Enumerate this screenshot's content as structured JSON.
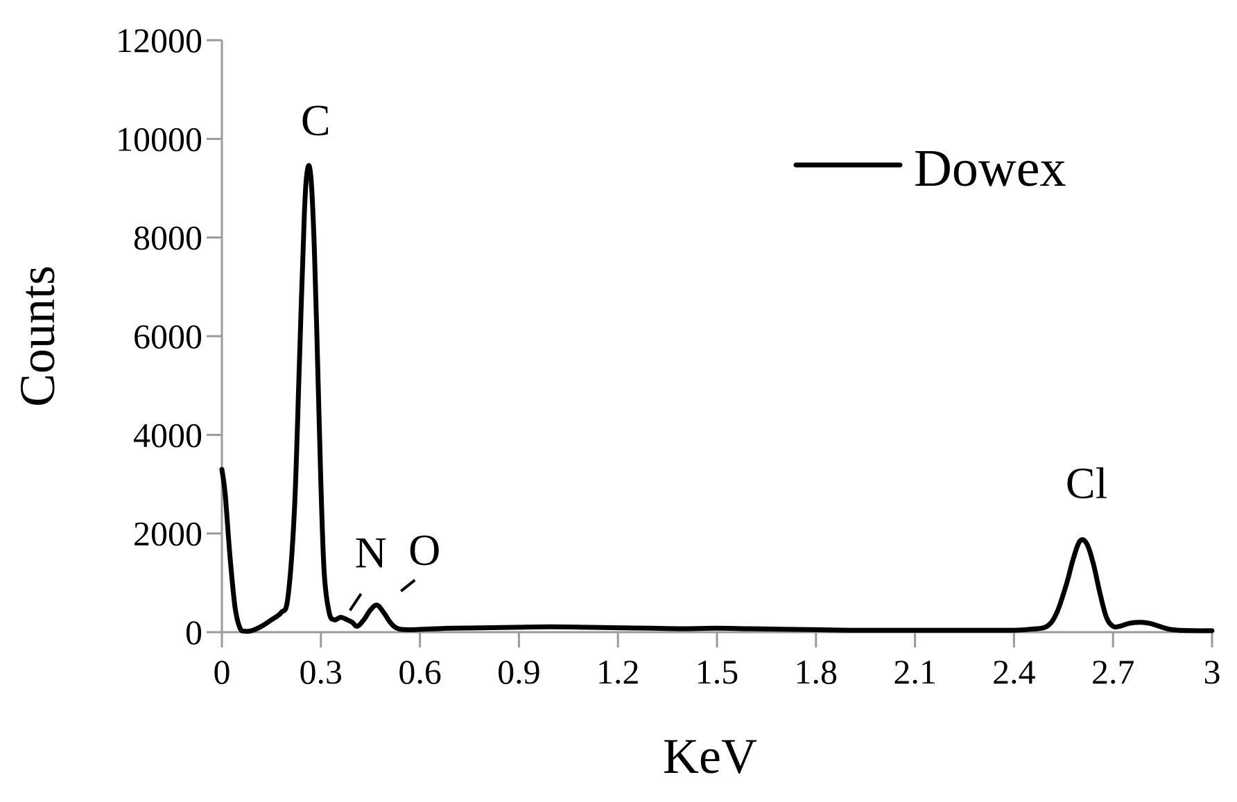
{
  "chart_data": {
    "type": "line",
    "title": "",
    "xlabel": "KeV",
    "ylabel": "Counts",
    "xlim": [
      0,
      3
    ],
    "ylim": [
      0,
      12000
    ],
    "grid": false,
    "legend": {
      "placement": "top-right",
      "entries": [
        "Dowex"
      ]
    },
    "x_ticks": [
      "0",
      "0.3",
      "0.6",
      "0.9",
      "1.2",
      "1.5",
      "1.8",
      "2.1",
      "2.4",
      "2.7",
      "3"
    ],
    "y_ticks": [
      "0",
      "2000",
      "4000",
      "6000",
      "8000",
      "10000",
      "12000"
    ],
    "series": [
      {
        "name": "Dowex",
        "color": "#000000",
        "x": [
          0.0,
          0.01,
          0.025,
          0.04,
          0.055,
          0.07,
          0.09,
          0.12,
          0.15,
          0.18,
          0.2,
          0.22,
          0.235,
          0.25,
          0.26,
          0.27,
          0.28,
          0.29,
          0.3,
          0.31,
          0.325,
          0.34,
          0.36,
          0.38,
          0.395,
          0.41,
          0.43,
          0.45,
          0.47,
          0.49,
          0.51,
          0.525,
          0.54,
          0.56,
          0.58,
          0.61,
          0.65,
          0.7,
          0.8,
          0.9,
          1.0,
          1.1,
          1.2,
          1.3,
          1.4,
          1.5,
          1.6,
          1.7,
          1.8,
          1.9,
          2.0,
          2.1,
          2.2,
          2.3,
          2.4,
          2.45,
          2.5,
          2.53,
          2.56,
          2.58,
          2.6,
          2.62,
          2.64,
          2.66,
          2.68,
          2.7,
          2.72,
          2.75,
          2.78,
          2.81,
          2.84,
          2.87,
          2.9,
          2.95,
          3.0
        ],
        "y": [
          3300,
          2800,
          1500,
          500,
          80,
          20,
          30,
          120,
          250,
          400,
          700,
          2500,
          5500,
          8500,
          9400,
          9200,
          7800,
          5500,
          3000,
          1200,
          400,
          250,
          300,
          250,
          200,
          120,
          250,
          450,
          550,
          400,
          200,
          100,
          60,
          50,
          50,
          60,
          70,
          80,
          90,
          100,
          110,
          100,
          90,
          80,
          70,
          80,
          70,
          60,
          50,
          40,
          40,
          40,
          40,
          40,
          40,
          60,
          120,
          400,
          1000,
          1500,
          1850,
          1800,
          1400,
          800,
          300,
          120,
          120,
          180,
          200,
          180,
          120,
          60,
          40,
          30,
          30
        ]
      }
    ],
    "annotations": [
      {
        "text": "C",
        "x": 0.28,
        "y": 9400
      },
      {
        "text": "N",
        "x": 0.43,
        "y": 300
      },
      {
        "text": "O",
        "x": 0.53,
        "y": 550
      },
      {
        "text": "Cl",
        "x": 2.62,
        "y": 1850
      }
    ]
  }
}
